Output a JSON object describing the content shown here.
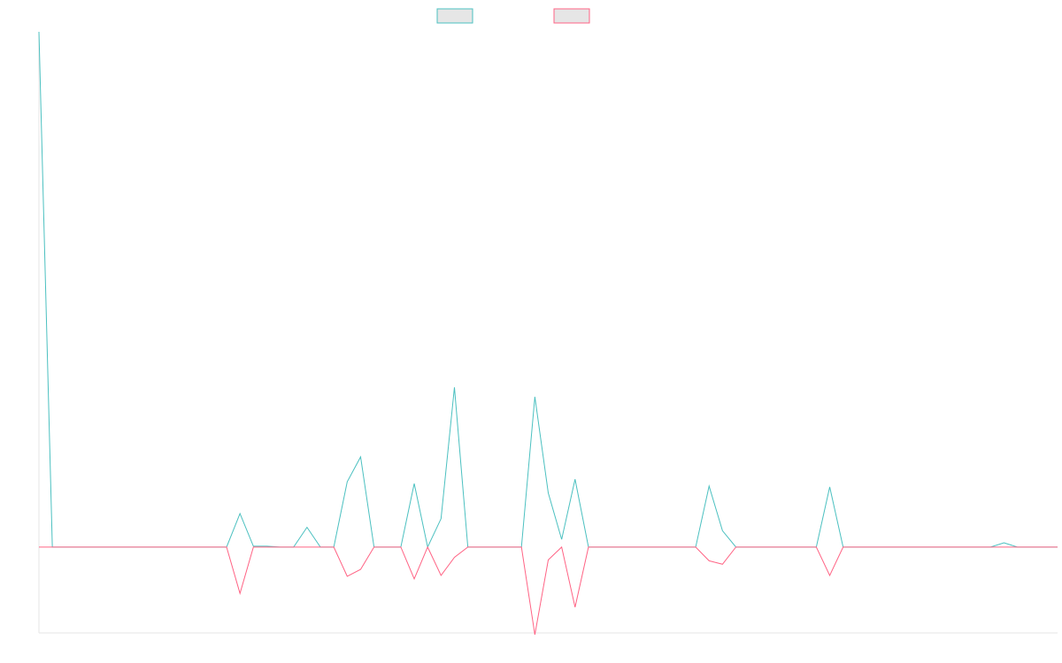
{
  "chart_data": {
    "type": "line",
    "x": [
      0,
      1,
      2,
      3,
      4,
      5,
      6,
      7,
      8,
      9,
      10,
      11,
      12,
      13,
      14,
      15,
      16,
      17,
      18,
      19,
      20,
      21,
      22,
      23,
      24,
      25,
      26,
      27,
      28,
      29,
      30,
      31,
      32,
      33,
      34,
      35,
      36,
      37,
      38,
      39,
      40,
      41,
      42,
      43,
      44,
      45,
      46,
      47,
      48,
      49,
      50,
      51,
      52,
      53,
      54,
      55,
      56,
      57,
      58,
      59,
      60,
      61,
      62,
      63,
      64,
      65,
      66,
      67,
      68,
      69,
      70,
      71,
      72,
      73,
      74,
      75,
      76
    ],
    "ylim": [
      -100,
      600
    ],
    "grid": false,
    "legend_position": "top-center",
    "series": [
      {
        "name": "",
        "color": "#4BC0C0",
        "values": [
          600,
          0,
          0,
          0,
          0,
          0,
          0,
          0,
          0,
          0,
          0,
          0,
          0,
          0,
          0,
          39,
          1,
          1,
          0,
          0,
          23,
          0,
          0,
          76,
          105,
          0,
          0,
          0,
          74,
          0,
          33,
          186,
          0,
          0,
          0,
          0,
          0,
          175,
          63,
          9,
          79,
          0,
          0,
          0,
          0,
          0,
          0,
          0,
          0,
          0,
          71,
          19,
          0,
          0,
          0,
          0,
          0,
          0,
          0,
          70,
          0,
          0,
          0,
          0,
          0,
          0,
          0,
          0,
          0,
          0,
          0,
          0,
          5,
          0,
          0,
          0,
          0
        ]
      },
      {
        "name": "",
        "color": "#FF6384",
        "values": [
          0,
          0,
          0,
          0,
          0,
          0,
          0,
          0,
          0,
          0,
          0,
          0,
          0,
          0,
          0,
          -54,
          0,
          0,
          0,
          0,
          0,
          0,
          0,
          -34,
          -26,
          0,
          0,
          0,
          -37,
          0,
          -33,
          -12,
          0,
          0,
          0,
          0,
          0,
          -102,
          -15,
          0,
          -70,
          0,
          0,
          0,
          0,
          0,
          0,
          0,
          0,
          0,
          -16,
          -20,
          0,
          0,
          0,
          0,
          0,
          0,
          0,
          -33,
          0,
          0,
          0,
          0,
          0,
          0,
          0,
          0,
          0,
          0,
          0,
          0,
          0,
          0,
          0,
          0,
          0
        ]
      }
    ]
  }
}
